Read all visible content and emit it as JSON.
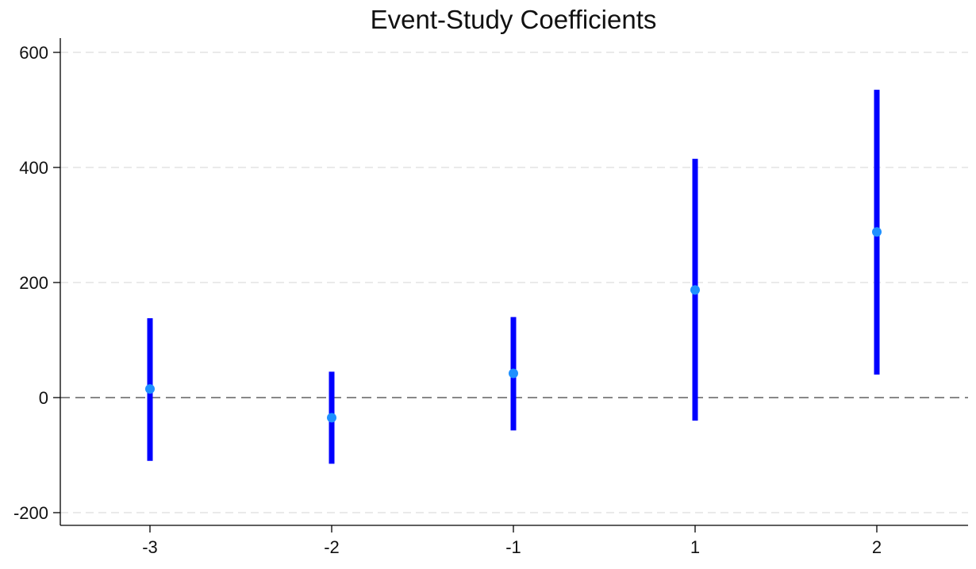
{
  "chart_data": {
    "type": "scatter",
    "title": "Event-Study Coefficients",
    "xlabel": "",
    "ylabel": "",
    "categories": [
      "-3",
      "-2",
      "-1",
      "1",
      "2"
    ],
    "series": [
      {
        "estimates": [
          15,
          -35,
          42,
          187,
          288
        ],
        "ci_lower": [
          -110,
          -115,
          -57,
          -40,
          40
        ],
        "ci_upper": [
          138,
          45,
          140,
          415,
          535
        ]
      }
    ],
    "yticks": [
      -200,
      0,
      200,
      400,
      600
    ],
    "ytick_labels": [
      "-200",
      "0",
      "200",
      "400",
      "600"
    ],
    "ylim": [
      -222,
      623
    ],
    "reference_line": 0,
    "grid": "horizontal dashed",
    "colors": {
      "ci_bar": "#0000ff",
      "point": "#1e90ff",
      "reference_line": "#888888",
      "grid": "#e4e4e4",
      "axis": "#000000"
    }
  }
}
